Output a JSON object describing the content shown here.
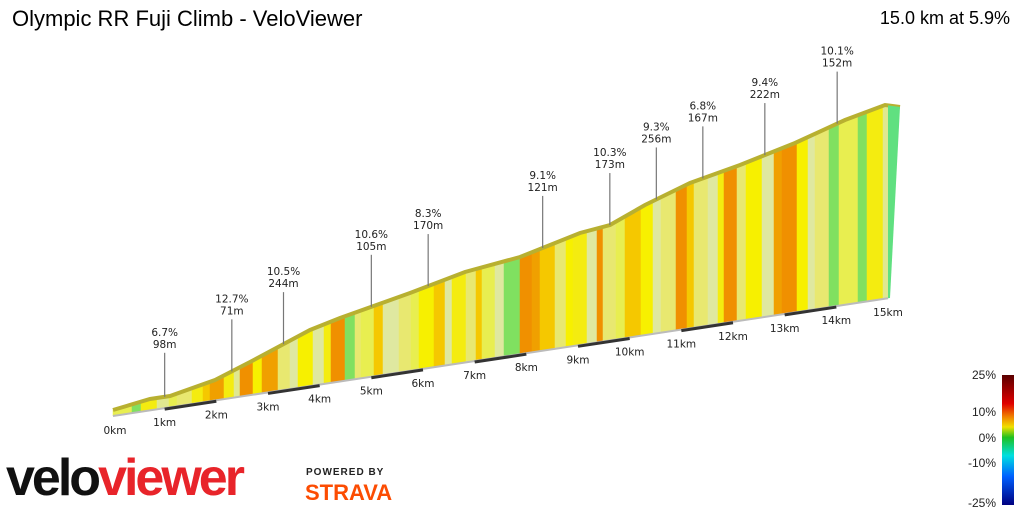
{
  "header": {
    "title": "Olympic RR Fuji Climb - VeloViewer",
    "summary": "15.0 km at 5.9%"
  },
  "chart_data": {
    "type": "area",
    "title": "Olympic RR Fuji Climb - VeloViewer",
    "distance_km": 15.0,
    "avg_gradient_pct": 5.9,
    "x_ticks": [
      "0km",
      "1km",
      "2km",
      "3km",
      "4km",
      "5km",
      "6km",
      "7km",
      "8km",
      "9km",
      "10km",
      "11km",
      "12km",
      "13km",
      "14km",
      "15km"
    ],
    "annotations": [
      {
        "km": 1.0,
        "gradient": "6.7%",
        "length": "98m"
      },
      {
        "km": 2.3,
        "gradient": "12.7%",
        "length": "71m"
      },
      {
        "km": 3.3,
        "gradient": "10.5%",
        "length": "244m"
      },
      {
        "km": 5.0,
        "gradient": "10.6%",
        "length": "105m"
      },
      {
        "km": 6.1,
        "gradient": "8.3%",
        "length": "170m"
      },
      {
        "km": 8.2,
        "gradient": "9.1%",
        "length": "121m"
      },
      {
        "km": 9.5,
        "gradient": "10.3%",
        "length": "173m"
      },
      {
        "km": 10.4,
        "gradient": "9.3%",
        "length": "256m"
      },
      {
        "km": 11.3,
        "gradient": "6.8%",
        "length": "167m"
      },
      {
        "km": 12.5,
        "gradient": "9.4%",
        "length": "222m"
      },
      {
        "km": 13.9,
        "gradient": "10.1%",
        "length": "152m"
      }
    ],
    "legend": {
      "ticks": [
        "25%",
        "10%",
        "0%",
        "-10%",
        "-25%"
      ],
      "colors": [
        "#5a0000",
        "#e00000",
        "#f08000",
        "#f0e000",
        "#20c020",
        "#00e0e0",
        "#0060ff",
        "#000080"
      ]
    }
  },
  "branding": {
    "logo": "veloviewer",
    "powered_by": "POWERED BY",
    "strava": "STRAVA",
    "logo_color": "#e8242a"
  }
}
